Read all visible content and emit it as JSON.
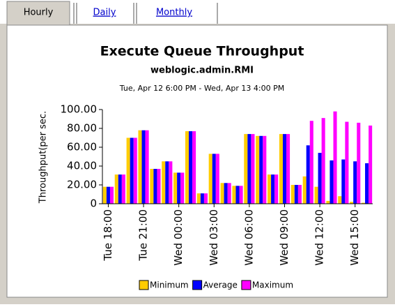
{
  "tabs": [
    "Hourly",
    "Daily",
    "Monthly"
  ],
  "chart_data": {
    "type": "bar",
    "title": "Execute Queue Throughput",
    "subtitle": "weblogic.admin.RMI",
    "date_range": "Tue, Apr 12 6:00 PM - Wed, Apr 13 4:00 PM",
    "y_label": "Throughput(per sec.",
    "categories": [
      "Tue 18:00",
      null,
      null,
      "Tue 21:00",
      null,
      null,
      "Wed 00:00",
      null,
      null,
      "Wed 03:00",
      null,
      null,
      "Wed 06:00",
      null,
      null,
      "Wed 09:00",
      null,
      null,
      "Wed 12:00",
      null,
      null,
      "Wed 15:00",
      null
    ],
    "series": [
      {
        "name": "Minimum",
        "color": "#ffcc00",
        "values": [
          18,
          31,
          70,
          78,
          37,
          45,
          33,
          77,
          11,
          53,
          22,
          19,
          74,
          72,
          31,
          74,
          20,
          29,
          18,
          3,
          8,
          2,
          1
        ]
      },
      {
        "name": "Average",
        "color": "#0000ff",
        "values": [
          18,
          31,
          70,
          78,
          37,
          45,
          33,
          77,
          11,
          53,
          22,
          19,
          74,
          72,
          31,
          74,
          20,
          62,
          54,
          46,
          47,
          45,
          43
        ]
      },
      {
        "name": "Maximum",
        "color": "#ff00ff",
        "values": [
          18,
          31,
          70,
          78,
          37,
          45,
          33,
          77,
          11,
          53,
          22,
          19,
          74,
          72,
          31,
          74,
          20,
          88,
          91,
          98,
          87,
          86,
          83
        ]
      }
    ],
    "ylim": [
      0,
      100
    ],
    "yticks": [
      {
        "value": 0,
        "label": "0"
      },
      {
        "value": 20,
        "label": "20.00"
      },
      {
        "value": 40,
        "label": "40.00"
      },
      {
        "value": 60,
        "label": "60.00"
      },
      {
        "value": 80,
        "label": "80.00"
      },
      {
        "value": 100,
        "label": "100.00"
      }
    ],
    "grid": false,
    "legend": "bottom"
  }
}
